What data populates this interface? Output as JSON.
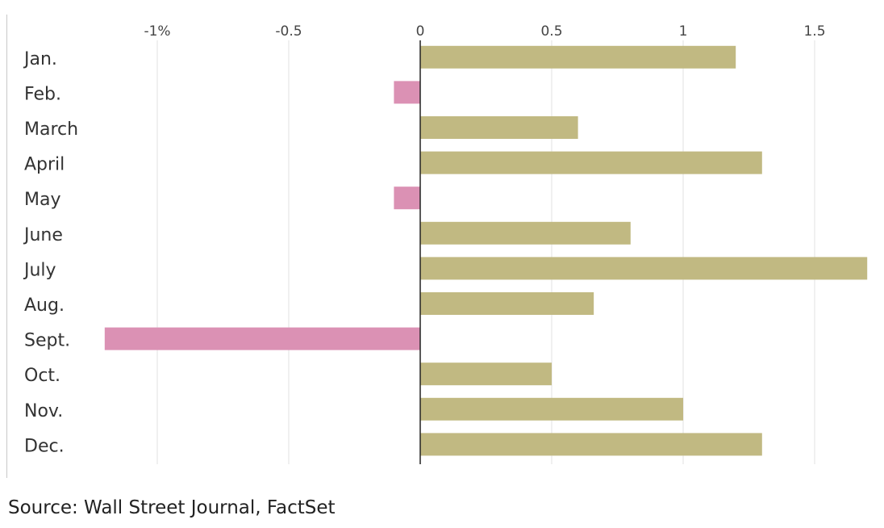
{
  "chart_data": {
    "type": "bar",
    "orientation": "horizontal",
    "categories": [
      "Jan.",
      "Feb.",
      "March",
      "April",
      "May",
      "June",
      "July",
      "Aug.",
      "Sept.",
      "Oct.",
      "Nov.",
      "Dec."
    ],
    "values": [
      1.2,
      -0.1,
      0.6,
      1.3,
      -0.1,
      0.8,
      1.7,
      0.66,
      -1.2,
      0.5,
      1.0,
      1.3
    ],
    "xlim": [
      -1.6,
      1.7
    ],
    "xticks": [
      -1,
      -0.5,
      0,
      0.5,
      1,
      1.5
    ],
    "xtick_labels": [
      "-1%",
      "-0.5",
      "0",
      "0.5",
      "1",
      "1.5"
    ],
    "tick_position": "top",
    "grid": "vertical",
    "colors": {
      "positive": "#c1b982",
      "negative": "#db91b4",
      "grid": "#e2e2e2",
      "zero_line": "#222222",
      "frame": "#c8c8c8"
    }
  },
  "source": "Source: Wall Street Journal, FactSet"
}
